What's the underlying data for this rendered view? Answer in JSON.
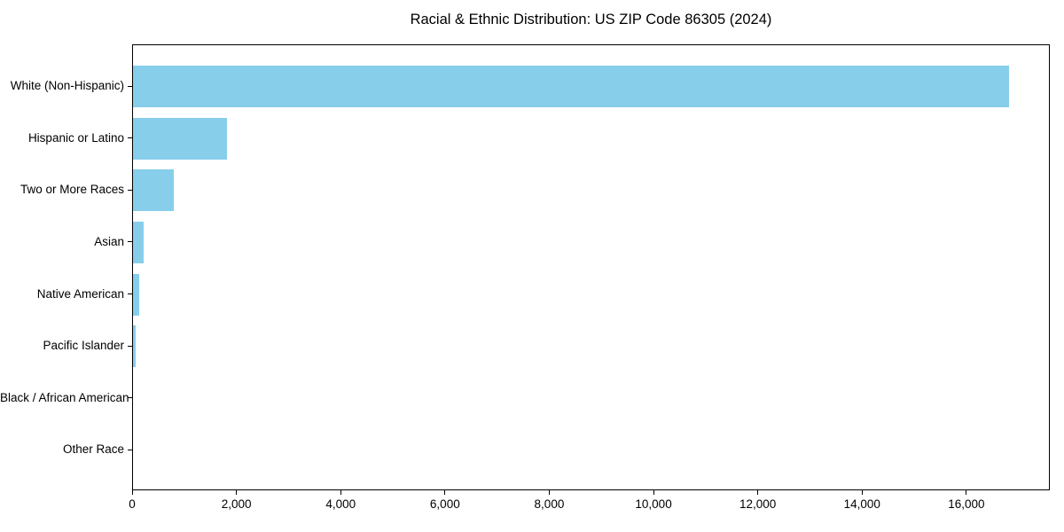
{
  "chart_data": {
    "type": "bar",
    "orientation": "horizontal",
    "title": "Racial & Ethnic Distribution: US ZIP Code 86305 (2024)",
    "categories": [
      "White (Non-Hispanic)",
      "Hispanic or Latino",
      "Two or More Races",
      "Asian",
      "Native American",
      "Pacific Islander",
      "Black / African American",
      "Other Race"
    ],
    "values": [
      16800,
      1800,
      790,
      200,
      120,
      55,
      0,
      0
    ],
    "xlabel": "",
    "ylabel": "",
    "xlim": [
      0,
      17600
    ],
    "xticks": [
      0,
      2000,
      4000,
      6000,
      8000,
      10000,
      12000,
      14000,
      16000
    ],
    "xtick_labels": [
      "0",
      "2,000",
      "4,000",
      "6,000",
      "8,000",
      "10,000",
      "12,000",
      "14,000",
      "16,000"
    ],
    "bar_color": "#87CEEB",
    "axis_color": "#000000",
    "text_color": "#000000",
    "background_color": "#ffffff",
    "grid": false,
    "legend_position": "none"
  }
}
